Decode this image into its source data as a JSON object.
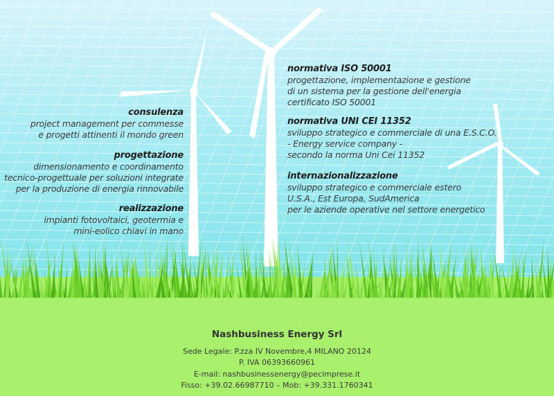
{
  "colors": {
    "sky_top": "#d8f4fb",
    "sky_bottom": "#7fe3ea",
    "grass": "#6fd12c",
    "ground": "#a8f06c",
    "text": "#3a3a3a"
  },
  "left_services": [
    {
      "title": "consulenza",
      "lines": [
        "project management per commesse",
        "e progetti attinenti il mondo green"
      ]
    },
    {
      "title": "progettazione",
      "lines": [
        "dimensionamento e coordinamento",
        "tecnico-progettuale per soluzioni integrate",
        "per la produzione di energia rinnovabile"
      ]
    },
    {
      "title": "realizzazione",
      "lines": [
        "impianti fotovoltaici, geotermia e",
        "mini-eolico chiavi in mano"
      ]
    }
  ],
  "right_services": [
    {
      "title": "normativa ISO 50001",
      "lines": [
        "progettazione, implementazione e gestione",
        "di un sistema per la gestione dell'energia",
        "certificato ISO 50001"
      ]
    },
    {
      "title": "normativa UNI CEI 11352",
      "lines": [
        "sviluppo strategico e commerciale di una E.S.C.O.",
        "- Energy service company -",
        "secondo la norma Uni Cei 11352"
      ]
    },
    {
      "title": "internazionalizzazione",
      "lines": [
        "sviluppo strategico e commerciale estero",
        "U.S.A., Est Europa, SudAmerica",
        "per le aziende operative nel settore energetico"
      ]
    }
  ],
  "footer": {
    "company": "Nashbusiness Energy Srl",
    "address": "Sede Legale: P.zza IV Novembre,4 MILANO 20124",
    "vat": "P. IVA 06393660961",
    "email": "E-mail: nashbusinessenergy@pecimprese.it",
    "phones": "Fisso: +39.02.66987710 – Mob: +39.331.1760341"
  }
}
